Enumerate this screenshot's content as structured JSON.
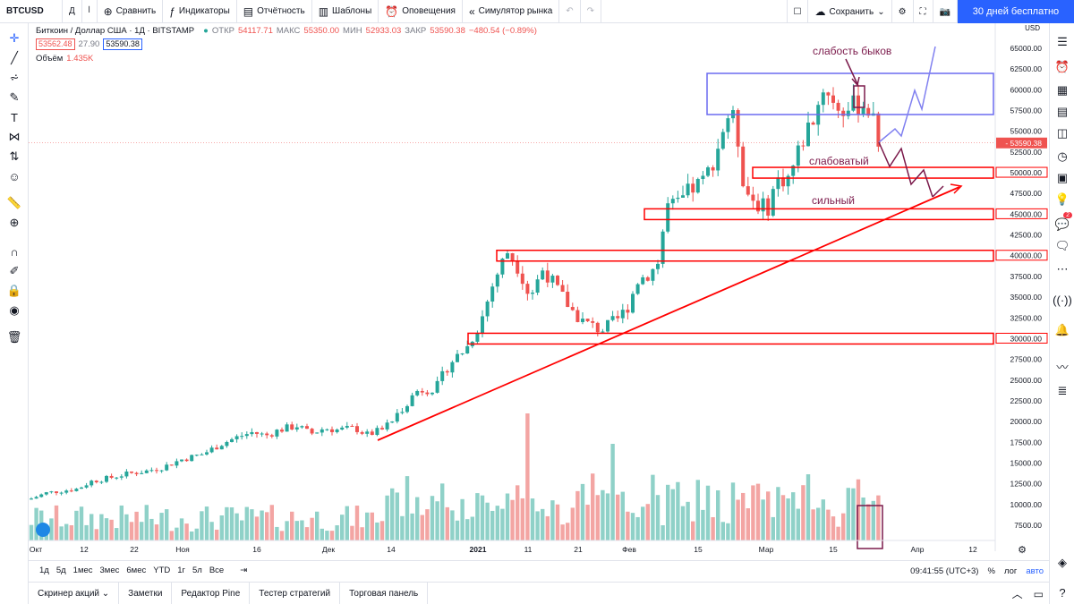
{
  "toolbar": {
    "symbol": "BTCUSD",
    "interval": "Д",
    "compare": "Сравнить",
    "indicators": "Индикаторы",
    "financials": "Отчётность",
    "templates": "Шаблоны",
    "alerts": "Оповещения",
    "replay": "Симулятор рынка",
    "save": "Сохранить",
    "trial": "30 дней бесплатно"
  },
  "legend": {
    "title": "Биткоин / Доллар США · 1Д · BITSTAMP",
    "open_label": "ОТКР",
    "open": "54117.71",
    "high_label": "МАКС",
    "high": "55350.00",
    "low_label": "МИН",
    "low": "52933.03",
    "close_label": "ЗАКР",
    "close": "53590.38",
    "change": "−480.54 (−0.89%)",
    "bid": "53562.48",
    "spread": "27.90",
    "ask": "53590.38",
    "volume_label": "Объём",
    "volume": "1.435K"
  },
  "chart_data": {
    "type": "candlestick",
    "currency": "USD",
    "price_ticks": [
      7500,
      10000,
      12500,
      15000,
      17500,
      20000,
      22500,
      25000,
      27500,
      30000,
      32500,
      35000,
      37500,
      40000,
      42500,
      45000,
      47500,
      50000,
      52500,
      55000,
      57500,
      60000,
      62500,
      65000
    ],
    "last_price": "53590.38",
    "time_ticks": [
      "Окт",
      "12",
      "22",
      "Ноя",
      "16",
      "Дек",
      "14",
      "2021",
      "11",
      "21",
      "Фев",
      "15",
      "Мар",
      "15",
      "Апр",
      "12"
    ],
    "annotations": {
      "bull_weakness": "слабость быков",
      "weak": "слабоватый",
      "strong": "сильный"
    },
    "levels": [
      30000,
      40000,
      45000,
      50000
    ],
    "colors": {
      "up": "#26a69a",
      "down": "#ef5350",
      "zone": "#ff0000",
      "box": "#6b6bf0",
      "note": "#7b1a4b"
    }
  },
  "bottom": {
    "ranges": [
      "1д",
      "5д",
      "1мес",
      "3мес",
      "6мес",
      "YTD",
      "1г",
      "5л",
      "Все"
    ],
    "time": "09:41:55 (UTC+3)",
    "percent": "%",
    "log": "лог",
    "auto": "авто"
  },
  "panels": [
    "Скринер акций",
    "Заметки",
    "Редактор Pine",
    "Тестер стратегий",
    "Торговая панель"
  ],
  "alerts_badge": "2"
}
